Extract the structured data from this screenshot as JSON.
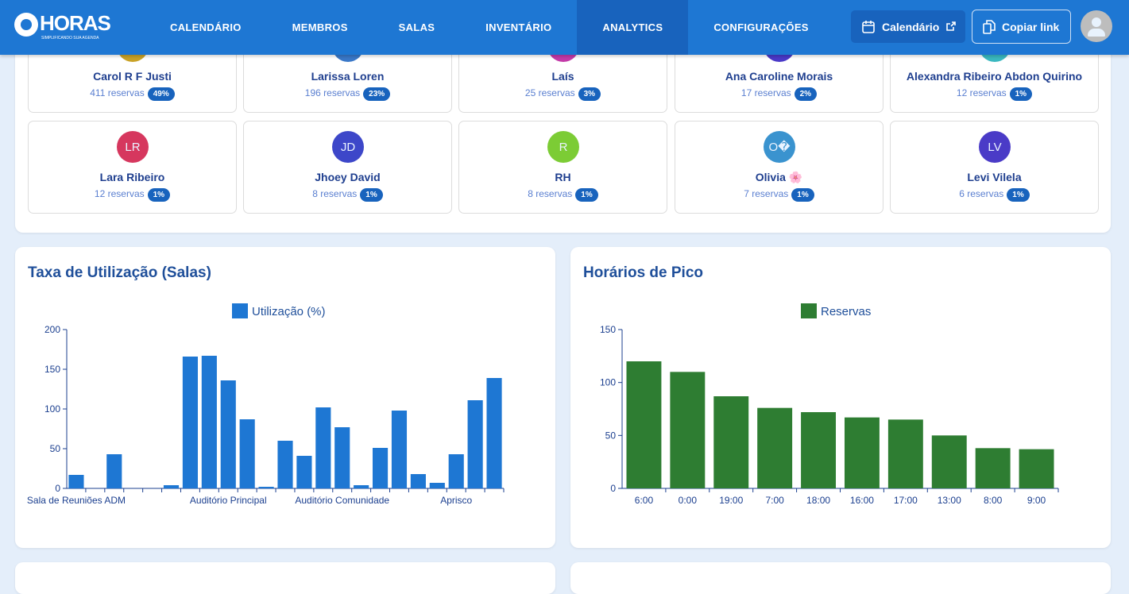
{
  "header": {
    "logo": "HORAS",
    "logo_tagline": "SIMPLIFICANDO SUA AGENDA",
    "nav": [
      {
        "label": "CALENDÁRIO"
      },
      {
        "label": "MEMBROS"
      },
      {
        "label": "SALAS"
      },
      {
        "label": "INVENTÁRIO"
      },
      {
        "label": "ANALYTICS",
        "active": true
      },
      {
        "label": "CONFIGURAÇÕES"
      }
    ],
    "calendar_button": "Calendário",
    "copy_link_button": "Copiar link"
  },
  "members": [
    {
      "initials": "",
      "name": "Carol R F Justi",
      "reservas": "411 reservas",
      "pct": "49%",
      "color": "#c9a227"
    },
    {
      "initials": "",
      "name": "Larissa Loren",
      "reservas": "196 reservas",
      "pct": "23%",
      "color": "#3a78c8"
    },
    {
      "initials": "",
      "name": "Laís",
      "reservas": "25 reservas",
      "pct": "3%",
      "color": "#c33aa8"
    },
    {
      "initials": "",
      "name": "Ana Caroline Morais",
      "reservas": "17 reservas",
      "pct": "2%",
      "color": "#4a3ac8"
    },
    {
      "initials": "",
      "name": "Alexandra Ribeiro Abdon Quirino",
      "reservas": "12 reservas",
      "pct": "1%",
      "color": "#3ab8c0"
    },
    {
      "initials": "LR",
      "name": "Lara Ribeiro",
      "reservas": "12 reservas",
      "pct": "1%",
      "color": "#d6375e"
    },
    {
      "initials": "JD",
      "name": "Jhoey David",
      "reservas": "8 reservas",
      "pct": "1%",
      "color": "#3d47c9"
    },
    {
      "initials": "R",
      "name": "RH",
      "reservas": "8 reservas",
      "pct": "1%",
      "color": "#7ccc35"
    },
    {
      "initials": "O�",
      "name": "Olivia 🌸",
      "reservas": "7 reservas",
      "pct": "1%",
      "color": "#3a93cf"
    },
    {
      "initials": "LV",
      "name": "Levi Vilela",
      "reservas": "6 reservas",
      "pct": "1%",
      "color": "#4a3bc7"
    }
  ],
  "chart_data": [
    {
      "type": "bar",
      "title": "Taxa de Utilização (Salas)",
      "legend": "Utilização (%)",
      "color": "#1e77d3",
      "ylim": [
        0,
        200
      ],
      "yticks": [
        0,
        50,
        100,
        150,
        200
      ],
      "categories": [
        "Sala de Reuniões ADM",
        "",
        "",
        "",
        "",
        "",
        "",
        "",
        "Auditório Principal",
        "",
        "",
        "",
        "",
        "",
        "Auditório Comunidade",
        "",
        "",
        "",
        "",
        "",
        "Aprisco",
        "",
        ""
      ],
      "values": [
        17,
        0,
        43,
        0,
        0,
        4,
        166,
        167,
        136,
        87,
        2,
        60,
        41,
        102,
        77,
        4,
        51,
        98,
        18,
        7,
        43,
        111,
        139
      ]
    },
    {
      "type": "bar",
      "title": "Horários de Pico",
      "legend": "Reservas",
      "color": "#2e7d32",
      "ylim": [
        0,
        150
      ],
      "yticks": [
        0,
        50,
        100,
        150
      ],
      "categories": [
        "6:00",
        "0:00",
        "19:00",
        "7:00",
        "18:00",
        "16:00",
        "17:00",
        "13:00",
        "8:00",
        "9:00"
      ],
      "values": [
        120,
        110,
        87,
        76,
        72,
        67,
        65,
        50,
        38,
        37
      ]
    }
  ]
}
